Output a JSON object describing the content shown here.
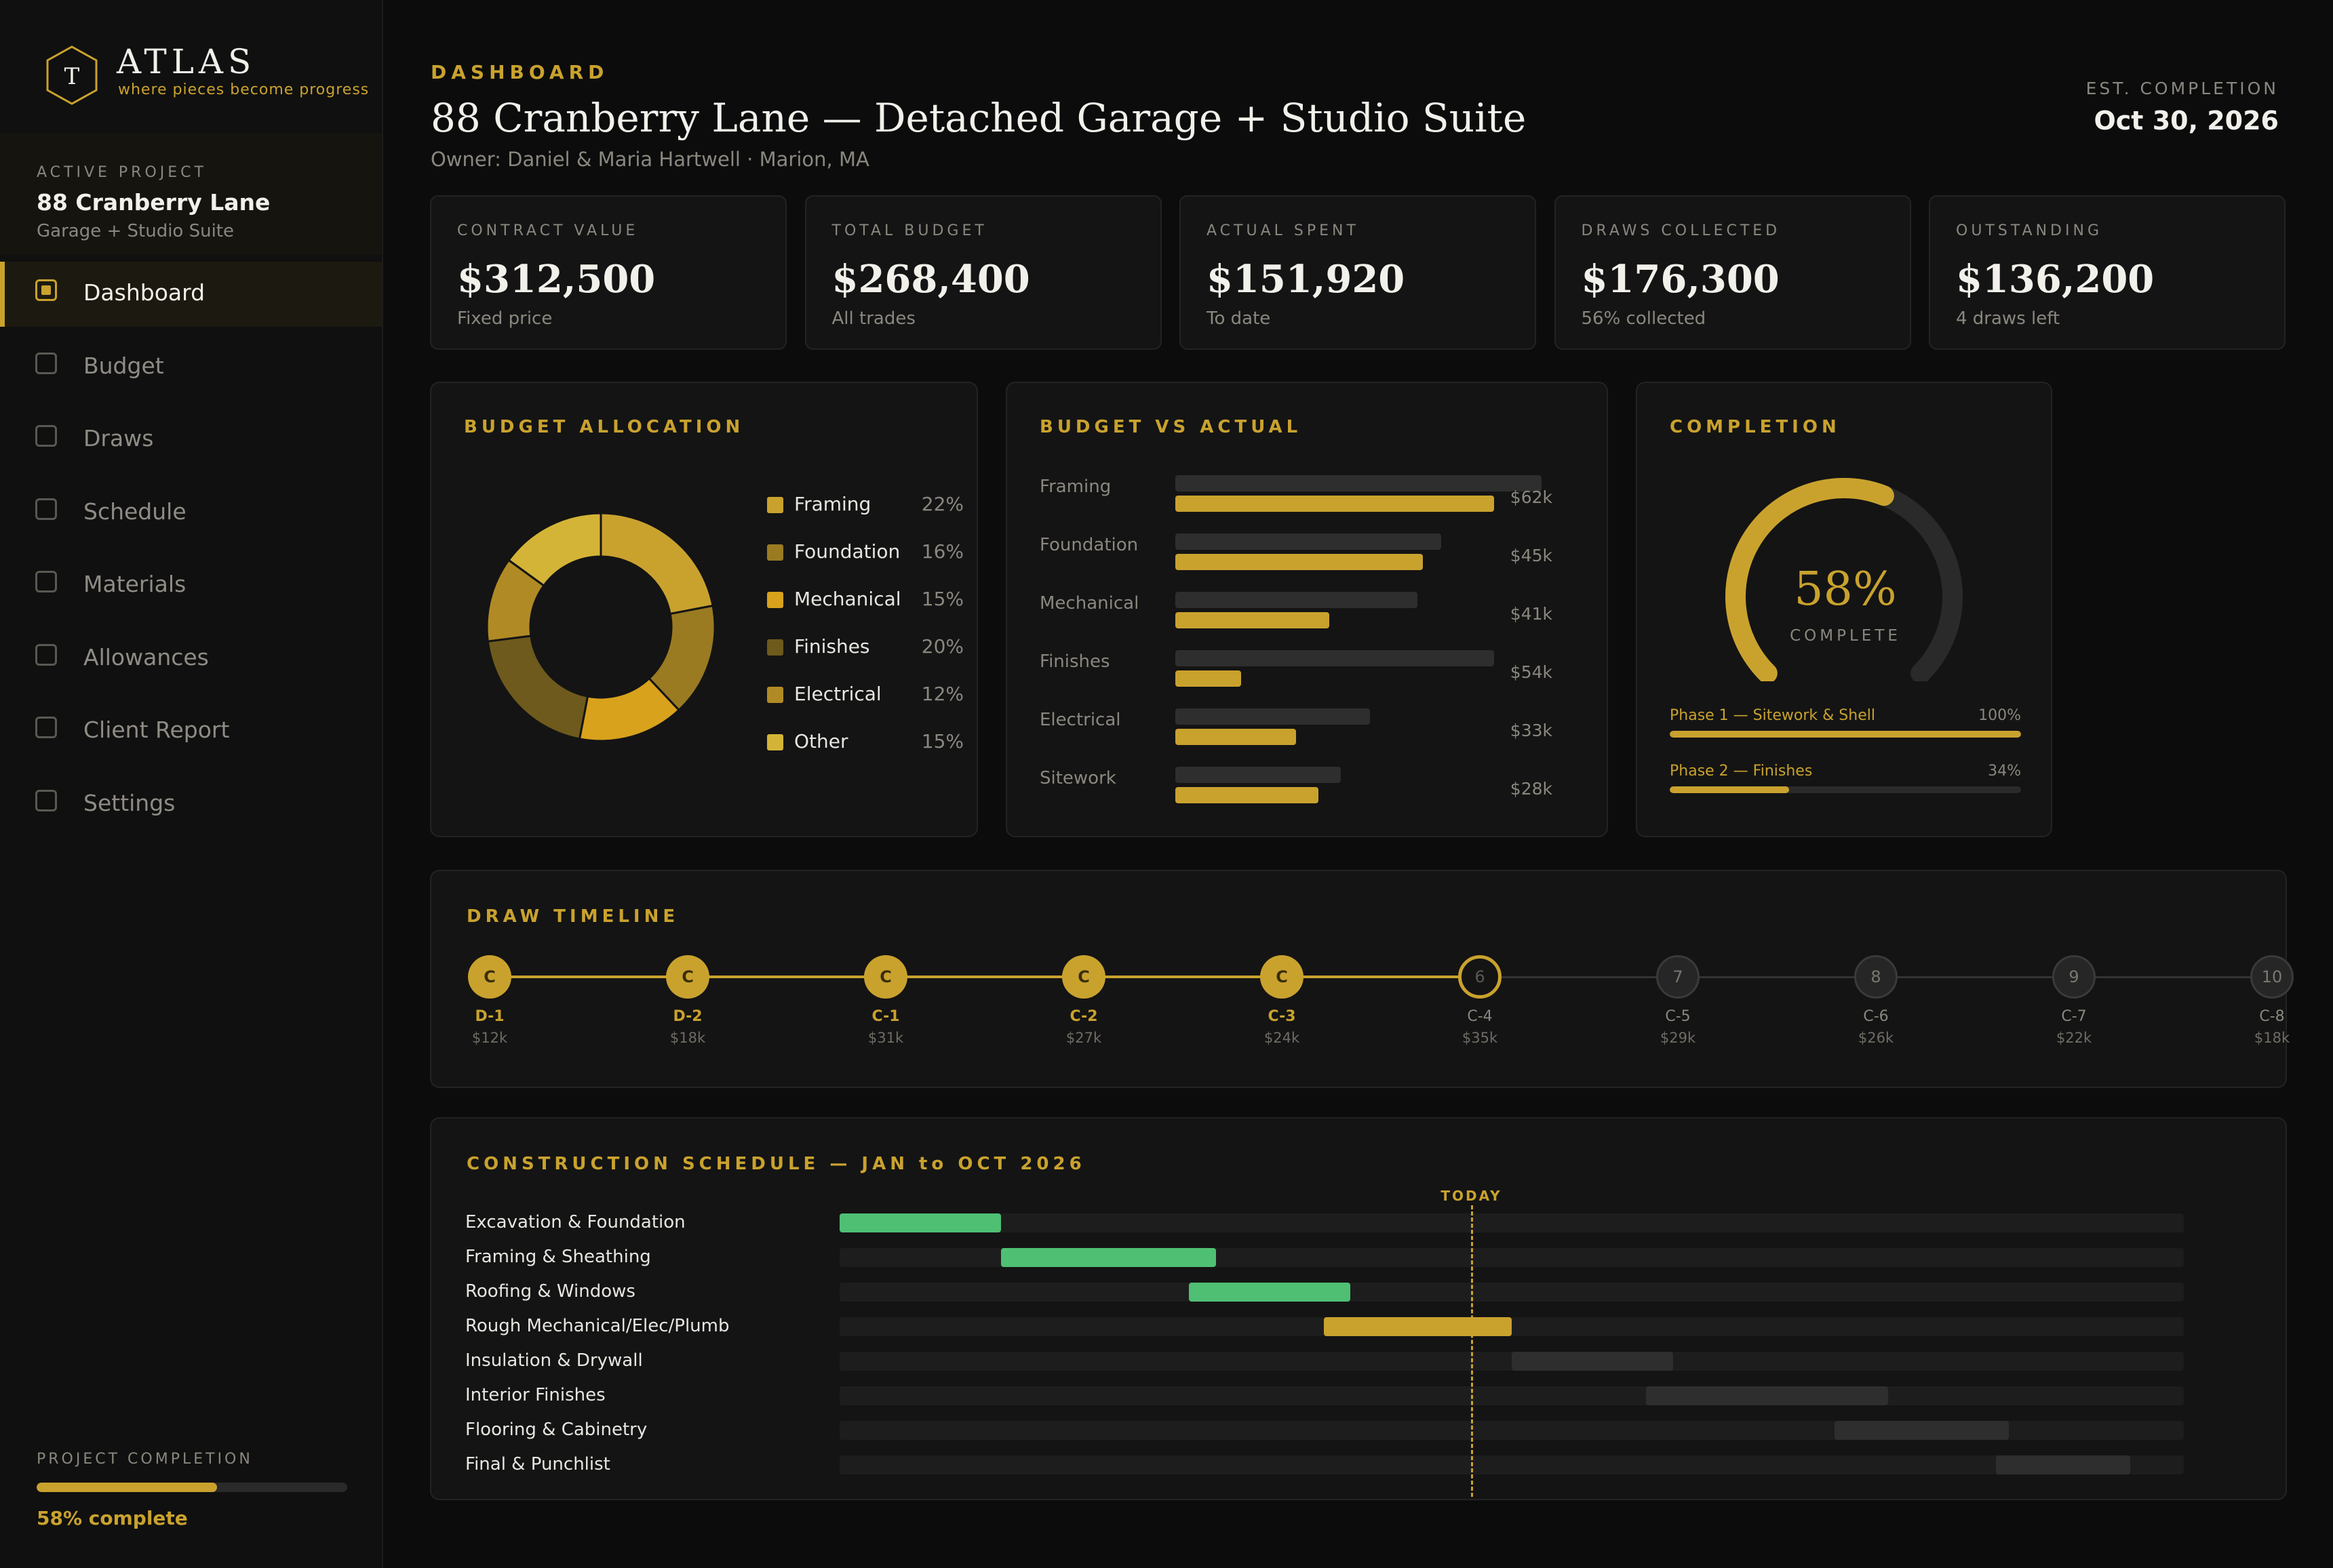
{
  "brand": {
    "name": "ATLAS",
    "tagline": "where pieces become progress",
    "logo_letter": "T"
  },
  "sidebar": {
    "active_label": "ACTIVE PROJECT",
    "project_name": "88 Cranberry Lane",
    "project_sub": "Garage + Studio Suite",
    "nav": [
      "Dashboard",
      "Budget",
      "Draws",
      "Schedule",
      "Materials",
      "Allowances",
      "Client Report",
      "Settings"
    ],
    "active_nav": "Dashboard",
    "completion_label": "PROJECT COMPLETION",
    "completion_value": 0.58,
    "completion_text": "58% complete"
  },
  "header": {
    "eyebrow": "DASHBOARD",
    "title": "88 Cranberry Lane — Detached Garage + Studio Suite",
    "owner": "Owner: Daniel & Maria Hartwell · Marion, MA",
    "est_label": "EST. COMPLETION",
    "est_date": "Oct 30, 2026"
  },
  "kpis": [
    {
      "label": "CONTRACT VALUE",
      "value": "$312,500",
      "sub": "Fixed price"
    },
    {
      "label": "TOTAL BUDGET",
      "value": "$268,400",
      "sub": "All trades"
    },
    {
      "label": "ACTUAL SPENT",
      "value": "$151,920",
      "sub": "To date"
    },
    {
      "label": "DRAWS COLLECTED",
      "value": "$176,300",
      "sub": "56% collected"
    },
    {
      "label": "OUTSTANDING",
      "value": "$136,200",
      "sub": "4 draws left"
    }
  ],
  "allocation": {
    "title": "BUDGET ALLOCATION",
    "items": [
      {
        "name": "Framing",
        "pct": "22%",
        "value": 22,
        "color": "#c9a22e"
      },
      {
        "name": "Foundation",
        "pct": "16%",
        "value": 16,
        "color": "#9a7b22"
      },
      {
        "name": "Mechanical",
        "pct": "15%",
        "value": 15,
        "color": "#d9a21c"
      },
      {
        "name": "Finishes",
        "pct": "20%",
        "value": 20,
        "color": "#6e5a1c"
      },
      {
        "name": "Electrical",
        "pct": "12%",
        "value": 12,
        "color": "#b08a25"
      },
      {
        "name": "Other",
        "pct": "15%",
        "value": 15,
        "color": "#d4b437"
      }
    ]
  },
  "budget_vs_actual": {
    "title": "BUDGET VS ACTUAL",
    "scale_max": 62,
    "rows": [
      {
        "name": "Framing",
        "budget": 62,
        "actual": 58,
        "label": "$62k"
      },
      {
        "name": "Foundation",
        "budget": 45,
        "actual": 45,
        "label": "$45k"
      },
      {
        "name": "Mechanical",
        "budget": 41,
        "actual": 28,
        "label": "$41k"
      },
      {
        "name": "Finishes",
        "budget": 54,
        "actual": 12,
        "label": "$54k"
      },
      {
        "name": "Electrical",
        "budget": 33,
        "actual": 22,
        "label": "$33k"
      },
      {
        "name": "Sitework",
        "budget": 28,
        "actual": 26,
        "label": "$28k"
      }
    ]
  },
  "completion": {
    "title": "COMPLETION",
    "value": 0.58,
    "pct_text": "58%",
    "caption": "COMPLETE",
    "phases": [
      {
        "name": "Phase 1 — Sitework & Shell",
        "pct": "100%",
        "value": 1.0
      },
      {
        "name": "Phase 2 — Finishes",
        "pct": "34%",
        "value": 0.34
      }
    ]
  },
  "draws": {
    "title": "DRAW TIMELINE",
    "items": [
      {
        "code": "D-1",
        "amount": "$12k",
        "state": "paid",
        "glyph": "C"
      },
      {
        "code": "D-2",
        "amount": "$18k",
        "state": "paid",
        "glyph": "C"
      },
      {
        "code": "C-1",
        "amount": "$31k",
        "state": "paid",
        "glyph": "C"
      },
      {
        "code": "C-2",
        "amount": "$27k",
        "state": "paid",
        "glyph": "C"
      },
      {
        "code": "C-3",
        "amount": "$24k",
        "state": "paid",
        "glyph": "C"
      },
      {
        "code": "C-4",
        "amount": "$35k",
        "state": "current",
        "glyph": "6"
      },
      {
        "code": "C-5",
        "amount": "$29k",
        "state": "future",
        "glyph": "7"
      },
      {
        "code": "C-6",
        "amount": "$26k",
        "state": "future",
        "glyph": "8"
      },
      {
        "code": "C-7",
        "amount": "$22k",
        "state": "future",
        "glyph": "9"
      },
      {
        "code": "C-8",
        "amount": "$18k",
        "state": "future",
        "glyph": "10"
      }
    ]
  },
  "schedule": {
    "title": "CONSTRUCTION SCHEDULE — JAN to OCT 2026",
    "today_label": "TODAY",
    "today": 0.47,
    "tasks": [
      {
        "name": "Excavation & Foundation",
        "start": 0.0,
        "end": 0.12,
        "status": "done"
      },
      {
        "name": "Framing & Sheathing",
        "start": 0.12,
        "end": 0.28,
        "status": "done"
      },
      {
        "name": "Roofing & Windows",
        "start": 0.26,
        "end": 0.38,
        "status": "done"
      },
      {
        "name": "Rough Mechanical/Elec/Plumb",
        "start": 0.36,
        "end": 0.5,
        "status": "active"
      },
      {
        "name": "Insulation & Drywall",
        "start": 0.5,
        "end": 0.62,
        "status": "upcoming"
      },
      {
        "name": "Interior Finishes",
        "start": 0.6,
        "end": 0.78,
        "status": "upcoming"
      },
      {
        "name": "Flooring & Cabinetry",
        "start": 0.74,
        "end": 0.87,
        "status": "upcoming"
      },
      {
        "name": "Final & Punchlist",
        "start": 0.86,
        "end": 0.96,
        "status": "upcoming"
      }
    ],
    "colors": {
      "done": "#4fbf74",
      "active": "#c9a22e",
      "upcoming": "#2e2e2e",
      "today": "#c9a22e"
    }
  }
}
